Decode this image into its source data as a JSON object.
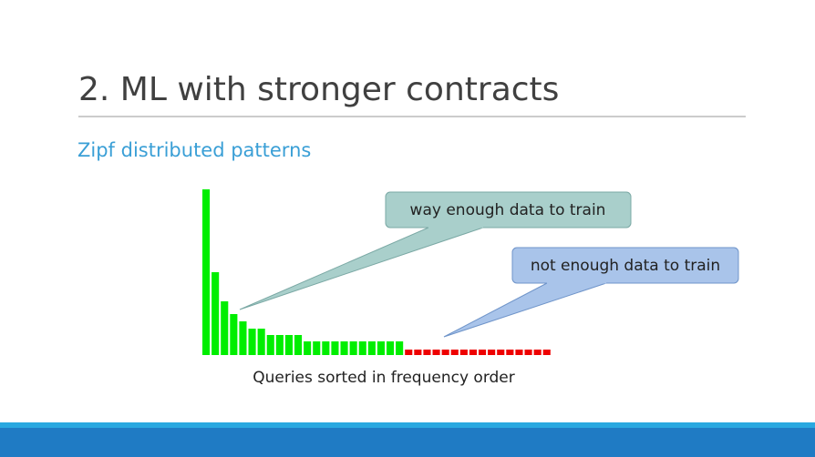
{
  "title": "2. ML with stronger contracts",
  "subtitle": "Zipf distributed patterns",
  "chart_data": {
    "type": "bar",
    "x_label": "Queries sorted in frequency order",
    "series": [
      {
        "color": "#00ee00",
        "values": [
          182,
          91,
          59,
          45,
          37,
          29,
          29,
          22,
          22,
          22,
          22,
          15,
          15,
          15,
          15,
          15,
          15,
          15,
          15,
          15,
          15,
          15
        ]
      },
      {
        "color": "#ee0000",
        "values": [
          6,
          6,
          6,
          6,
          6,
          6,
          6,
          6,
          6,
          6,
          6,
          6,
          6,
          6,
          6,
          6
        ]
      }
    ],
    "annotations": [
      "way enough data to train",
      "not enough data to train"
    ]
  }
}
